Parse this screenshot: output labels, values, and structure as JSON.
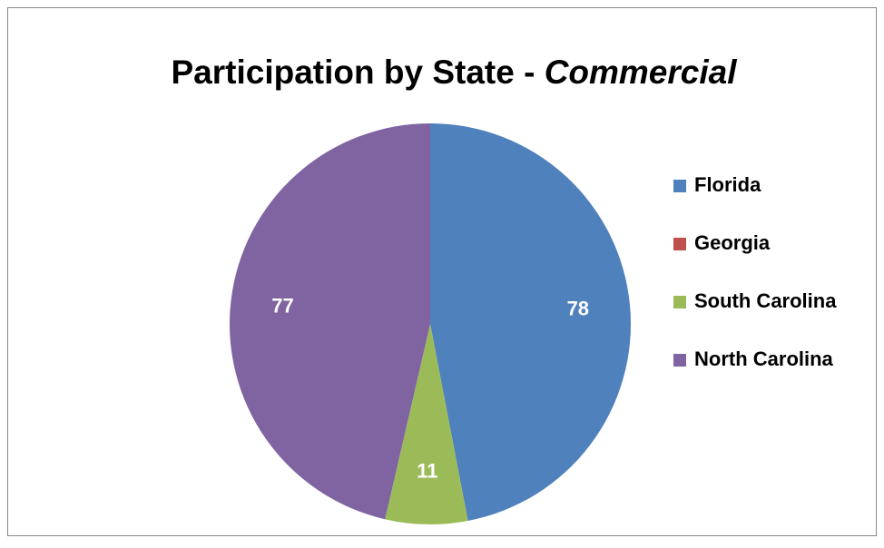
{
  "chart_data": {
    "type": "pie",
    "title": "Participation by State  -",
    "title_italic": "Commercial",
    "categories": [
      "Florida",
      "Georgia",
      "South Carolina",
      "North Carolina"
    ],
    "values": [
      78,
      0,
      11,
      77
    ],
    "colors": [
      "#4f81bd",
      "#c0504d",
      "#9bbb59",
      "#8064a2"
    ],
    "legend": "right"
  }
}
